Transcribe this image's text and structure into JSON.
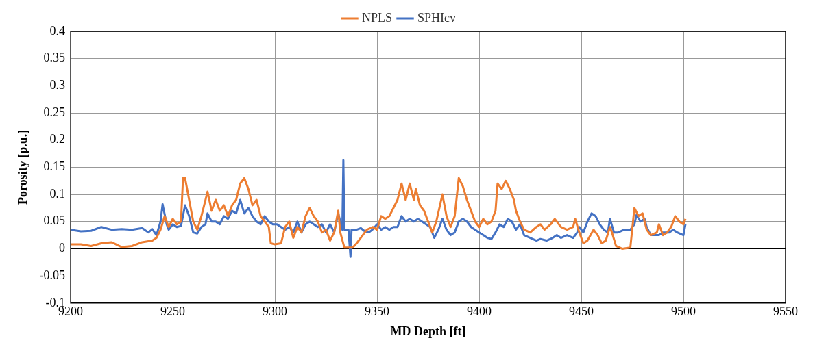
{
  "chart_data": {
    "type": "line",
    "xlabel": "MD Depth [ft]",
    "ylabel": "Porosity [p.u.]",
    "xlim": [
      9200,
      9550
    ],
    "xticks": [
      9200,
      9250,
      9300,
      9350,
      9400,
      9450,
      9500,
      9550
    ],
    "ylim": [
      -0.1,
      0.4
    ],
    "yticks": [
      -0.1,
      -0.05,
      0,
      0.05,
      0.1,
      0.15,
      0.2,
      0.25,
      0.3,
      0.35,
      0.4
    ],
    "grid": true,
    "legend": "top",
    "marker": "none",
    "line_style": "solid",
    "series": [
      {
        "name": "NPLS",
        "color": "#ed7d31",
        "x": [
          9200,
          9205,
          9210,
          9215,
          9220,
          9225,
          9230,
          9235,
          9240,
          9242,
          9244,
          9246,
          9248,
          9250,
          9252,
          9254,
          9255,
          9256,
          9258,
          9260,
          9262,
          9264,
          9266,
          9267,
          9269,
          9271,
          9273,
          9275,
          9277,
          9279,
          9281,
          9283,
          9285,
          9287,
          9289,
          9291,
          9293,
          9295,
          9297,
          9298,
          9300,
          9303,
          9305,
          9307,
          9309,
          9311,
          9313,
          9315,
          9317,
          9319,
          9321,
          9323,
          9325,
          9327,
          9329,
          9331,
          9332,
          9334,
          9338,
          9340,
          9342,
          9345,
          9348,
          9350,
          9352,
          9354,
          9356,
          9360,
          9362,
          9364,
          9366,
          9368,
          9369,
          9371,
          9373,
          9375,
          9377,
          9379,
          9382,
          9384,
          9386,
          9388,
          9390,
          9392,
          9394,
          9396,
          9398,
          9400,
          9402,
          9404,
          9406,
          9408,
          9409,
          9411,
          9413,
          9415,
          9417,
          9418,
          9420,
          9422,
          9425,
          9428,
          9430,
          9432,
          9435,
          9437,
          9440,
          9443,
          9446,
          9447,
          9449,
          9451,
          9453,
          9456,
          9458,
          9460,
          9462,
          9464,
          9465,
          9467,
          9470,
          9474,
          9476,
          9478,
          9480,
          9482,
          9484,
          9487,
          9488,
          9490,
          9492,
          9494,
          9496,
          9498,
          9500,
          9501
        ],
        "values": [
          0.008,
          0.008,
          0.005,
          0.01,
          0.012,
          0.003,
          0.005,
          0.012,
          0.015,
          0.02,
          0.035,
          0.06,
          0.04,
          0.055,
          0.045,
          0.05,
          0.13,
          0.13,
          0.09,
          0.05,
          0.035,
          0.06,
          0.09,
          0.105,
          0.07,
          0.09,
          0.07,
          0.08,
          0.06,
          0.08,
          0.09,
          0.12,
          0.13,
          0.11,
          0.08,
          0.09,
          0.06,
          0.05,
          0.04,
          0.01,
          0.008,
          0.01,
          0.04,
          0.05,
          0.02,
          0.04,
          0.03,
          0.06,
          0.075,
          0.06,
          0.05,
          0.03,
          0.035,
          0.015,
          0.03,
          0.07,
          0.03,
          0.002,
          0.002,
          0.01,
          0.02,
          0.035,
          0.04,
          0.035,
          0.06,
          0.055,
          0.06,
          0.09,
          0.12,
          0.09,
          0.12,
          0.09,
          0.11,
          0.08,
          0.07,
          0.05,
          0.03,
          0.05,
          0.1,
          0.06,
          0.04,
          0.06,
          0.13,
          0.115,
          0.09,
          0.07,
          0.05,
          0.04,
          0.055,
          0.045,
          0.05,
          0.07,
          0.12,
          0.11,
          0.125,
          0.11,
          0.09,
          0.07,
          0.05,
          0.035,
          0.03,
          0.04,
          0.045,
          0.035,
          0.045,
          0.055,
          0.04,
          0.035,
          0.04,
          0.055,
          0.03,
          0.01,
          0.015,
          0.035,
          0.025,
          0.01,
          0.015,
          0.04,
          0.03,
          0.005,
          0,
          0.002,
          0.075,
          0.06,
          0.065,
          0.035,
          0.025,
          0.03,
          0.045,
          0.025,
          0.03,
          0.04,
          0.06,
          0.05,
          0.045,
          0.055
        ]
      },
      {
        "name": "SPHIcv",
        "color": "#4472c4",
        "x": [
          9200,
          9205,
          9210,
          9215,
          9220,
          9225,
          9230,
          9235,
          9238,
          9240,
          9242,
          9244,
          9245,
          9247,
          9248,
          9250,
          9252,
          9254,
          9256,
          9258,
          9260,
          9262,
          9264,
          9266,
          9267,
          9269,
          9271,
          9273,
          9275,
          9277,
          9279,
          9281,
          9283,
          9285,
          9287,
          9289,
          9291,
          9293,
          9295,
          9297,
          9299,
          9301,
          9303,
          9305,
          9307,
          9309,
          9311,
          9313,
          9315,
          9317,
          9319,
          9321,
          9323,
          9325,
          9327,
          9329,
          9331,
          9332,
          9333,
          9333.5,
          9334,
          9336,
          9337,
          9337.5,
          9340,
          9342,
          9344,
          9346,
          9348,
          9350,
          9352,
          9354,
          9356,
          9358,
          9360,
          9362,
          9364,
          9366,
          9368,
          9370,
          9372,
          9374,
          9376,
          9378,
          9380,
          9382,
          9384,
          9386,
          9388,
          9390,
          9392,
          9394,
          9396,
          9398,
          9400,
          9402,
          9404,
          9406,
          9408,
          9410,
          9412,
          9414,
          9416,
          9418,
          9420,
          9422,
          9425,
          9428,
          9430,
          9433,
          9436,
          9438,
          9440,
          9443,
          9446,
          9448,
          9449,
          9451,
          9453,
          9455,
          9457,
          9459,
          9461,
          9463,
          9464,
          9466,
          9468,
          9471,
          9474,
          9476,
          9477,
          9479,
          9481,
          9482,
          9484,
          9488,
          9490,
          9493,
          9495,
          9497,
          9500,
          9501
        ],
        "values": [
          0.035,
          0.032,
          0.033,
          0.04,
          0.035,
          0.036,
          0.035,
          0.038,
          0.03,
          0.036,
          0.025,
          0.05,
          0.082,
          0.045,
          0.035,
          0.045,
          0.04,
          0.042,
          0.08,
          0.06,
          0.03,
          0.028,
          0.04,
          0.045,
          0.065,
          0.05,
          0.05,
          0.045,
          0.06,
          0.055,
          0.07,
          0.065,
          0.09,
          0.065,
          0.075,
          0.06,
          0.05,
          0.045,
          0.06,
          0.05,
          0.045,
          0.045,
          0.04,
          0.035,
          0.04,
          0.03,
          0.05,
          0.03,
          0.045,
          0.05,
          0.045,
          0.04,
          0.045,
          0.03,
          0.045,
          0.03,
          0.065,
          0.05,
          0.035,
          0.163,
          0.035,
          0.035,
          -0.015,
          0.035,
          0.035,
          0.038,
          0.032,
          0.03,
          0.036,
          0.045,
          0.035,
          0.04,
          0.035,
          0.04,
          0.04,
          0.06,
          0.05,
          0.055,
          0.05,
          0.055,
          0.05,
          0.045,
          0.04,
          0.02,
          0.035,
          0.055,
          0.035,
          0.025,
          0.03,
          0.05,
          0.055,
          0.05,
          0.04,
          0.035,
          0.03,
          0.025,
          0.02,
          0.018,
          0.03,
          0.045,
          0.04,
          0.055,
          0.05,
          0.035,
          0.045,
          0.025,
          0.02,
          0.015,
          0.018,
          0.015,
          0.02,
          0.025,
          0.02,
          0.025,
          0.02,
          0.03,
          0.04,
          0.03,
          0.05,
          0.065,
          0.06,
          0.045,
          0.035,
          0.03,
          0.055,
          0.03,
          0.03,
          0.035,
          0.035,
          0.045,
          0.062,
          0.05,
          0.055,
          0.04,
          0.025,
          0.025,
          0.03,
          0.03,
          0.035,
          0.03,
          0.025,
          0.045
        ]
      }
    ]
  }
}
